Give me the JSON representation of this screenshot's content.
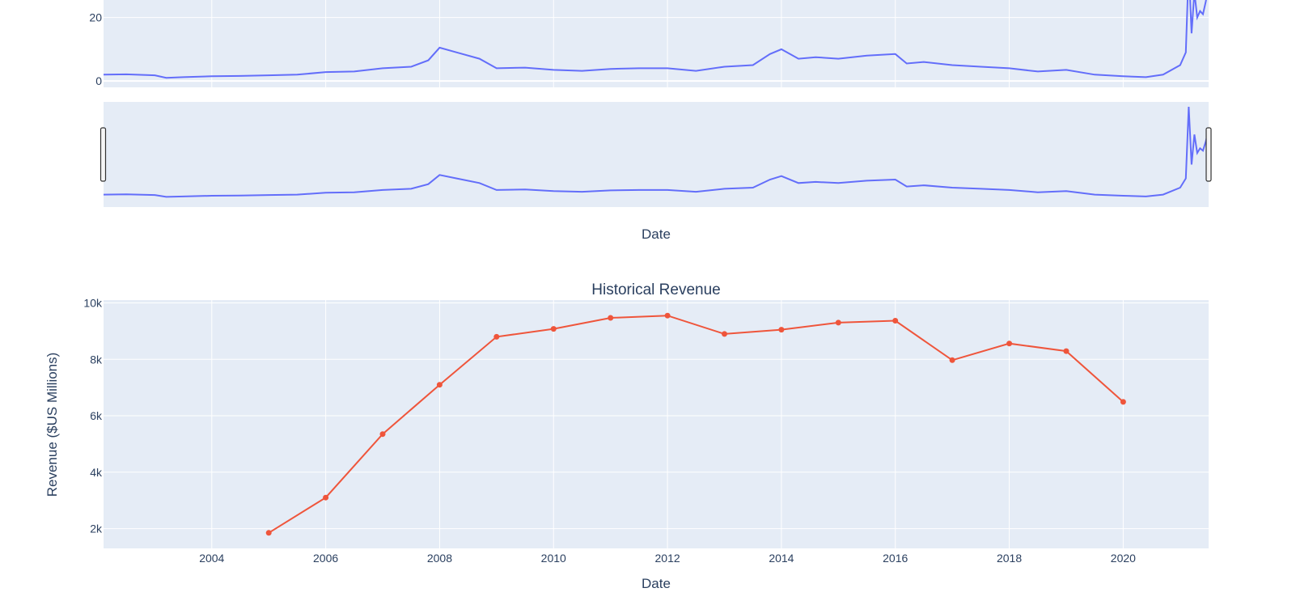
{
  "colors": {
    "plot_bg": "#e5ecf6",
    "grid": "#ffffff",
    "text": "#2a3f5f",
    "price_line": "#636efa",
    "revenue_line": "#ef553b"
  },
  "chart_data": [
    {
      "type": "line",
      "title": "",
      "xlabel": "Date",
      "ylabel": "",
      "x_range": [
        2002.1,
        2021.5
      ],
      "ylim": [
        -2,
        26
      ],
      "y_ticks": [
        "0",
        "20"
      ],
      "grid": true,
      "has_range_slider": true,
      "range_slider_ylim": [
        -2,
        40
      ],
      "series": [
        {
          "color": "#636efa",
          "x": [
            2002.1,
            2002.5,
            2003.0,
            2003.2,
            2003.5,
            2004.0,
            2004.5,
            2005.0,
            2005.5,
            2006.0,
            2006.5,
            2007.0,
            2007.5,
            2007.8,
            2008.0,
            2008.3,
            2008.7,
            2009.0,
            2009.5,
            2010.0,
            2010.5,
            2011.0,
            2011.5,
            2012.0,
            2012.5,
            2013.0,
            2013.5,
            2013.8,
            2014.0,
            2014.3,
            2014.6,
            2015.0,
            2015.5,
            2016.0,
            2016.2,
            2016.5,
            2017.0,
            2017.5,
            2018.0,
            2018.5,
            2019.0,
            2019.5,
            2020.0,
            2020.4,
            2020.7,
            2021.0,
            2021.1,
            2021.15,
            2021.2,
            2021.25,
            2021.3,
            2021.35,
            2021.4,
            2021.45,
            2021.5
          ],
          "values": [
            2.0,
            2.1,
            1.8,
            1.0,
            1.2,
            1.5,
            1.6,
            1.8,
            2.0,
            2.8,
            3.0,
            4.0,
            4.5,
            6.5,
            10.5,
            9.0,
            7.0,
            4.0,
            4.2,
            3.5,
            3.2,
            3.8,
            4.0,
            4.0,
            3.2,
            4.5,
            5.0,
            8.5,
            10.0,
            7.0,
            7.5,
            7.0,
            8.0,
            8.5,
            5.5,
            6.0,
            5.0,
            4.5,
            4.0,
            3.0,
            3.5,
            2.0,
            1.5,
            1.2,
            2.0,
            5.0,
            9.0,
            40.0,
            15.0,
            28.0,
            20.0,
            22.0,
            21.0,
            25.0,
            30.0
          ]
        }
      ]
    },
    {
      "type": "line",
      "title": "Historical Revenue",
      "xlabel": "Date",
      "ylabel": "Revenue ($US Millions)",
      "x_range": [
        2002.1,
        2021.5
      ],
      "x_ticks": [
        "2004",
        "2006",
        "2008",
        "2010",
        "2012",
        "2014",
        "2016",
        "2018",
        "2020"
      ],
      "ylim": [
        1300,
        10100
      ],
      "y_ticks": [
        "2k",
        "4k",
        "6k",
        "8k",
        "10k"
      ],
      "grid": true,
      "series": [
        {
          "color": "#ef553b",
          "x": [
            2005,
            2006,
            2007,
            2008,
            2009,
            2010,
            2011,
            2012,
            2013,
            2014,
            2015,
            2016,
            2017,
            2018,
            2019,
            2020
          ],
          "values": [
            1850,
            3100,
            5350,
            7100,
            8800,
            9080,
            9470,
            9550,
            8900,
            9050,
            9300,
            9370,
            7970,
            8560,
            8290,
            6490
          ]
        }
      ]
    }
  ]
}
